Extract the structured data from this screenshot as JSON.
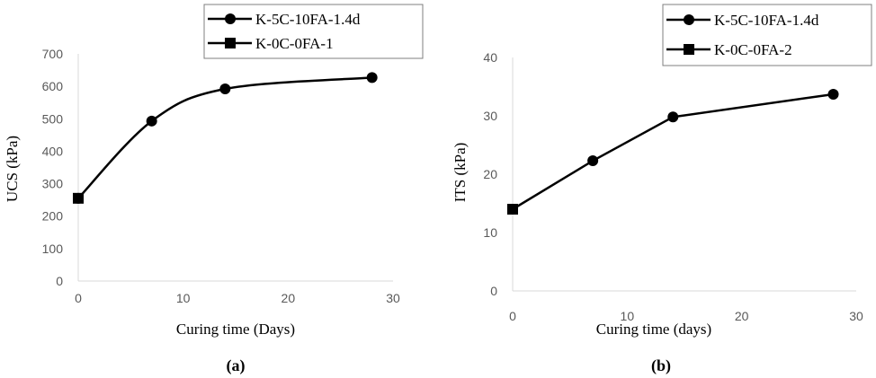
{
  "chart_data": [
    {
      "type": "line",
      "title": "",
      "xlabel": "Curing time (Days)",
      "ylabel": "UCS (kPa)",
      "xlim": [
        0,
        30
      ],
      "ylim": [
        0,
        700
      ],
      "xticks": [
        "0",
        "10",
        "20",
        "30"
      ],
      "yticks": [
        "0",
        "100",
        "200",
        "300",
        "400",
        "500",
        "600",
        "700"
      ],
      "grid": false,
      "legend_position": "top-right",
      "panel_label": "(a)",
      "series": [
        {
          "name": "K-5C-10FA-1.4d",
          "marker": "circle",
          "smooth": true,
          "x": [
            0,
            7,
            14,
            28
          ],
          "y": [
            255,
            493,
            592,
            627
          ]
        },
        {
          "name": "K-0C-0FA-1",
          "marker": "square",
          "smooth": false,
          "x": [
            0
          ],
          "y": [
            255
          ]
        }
      ]
    },
    {
      "type": "line",
      "title": "",
      "xlabel": "Curing time (days)",
      "ylabel": "ITS (kPa)",
      "xlim": [
        0,
        30
      ],
      "ylim": [
        0,
        40
      ],
      "xticks": [
        "0",
        "10",
        "20",
        "30"
      ],
      "yticks": [
        "0",
        "10",
        "20",
        "30",
        "40"
      ],
      "grid": false,
      "legend_position": "top-right",
      "panel_label": "(b)",
      "series": [
        {
          "name": "K-5C-10FA-1.4d",
          "marker": "circle",
          "smooth": false,
          "x": [
            0,
            7,
            14,
            28
          ],
          "y": [
            14,
            22.3,
            29.8,
            33.7
          ]
        },
        {
          "name": "K-0C-0FA-2",
          "marker": "square",
          "smooth": false,
          "x": [
            0
          ],
          "y": [
            14
          ]
        }
      ]
    }
  ],
  "colors": {
    "line": "#000000",
    "axis": "#d9d9d9",
    "tick_text": "#595959",
    "legend_border": "#7f7f7f"
  }
}
